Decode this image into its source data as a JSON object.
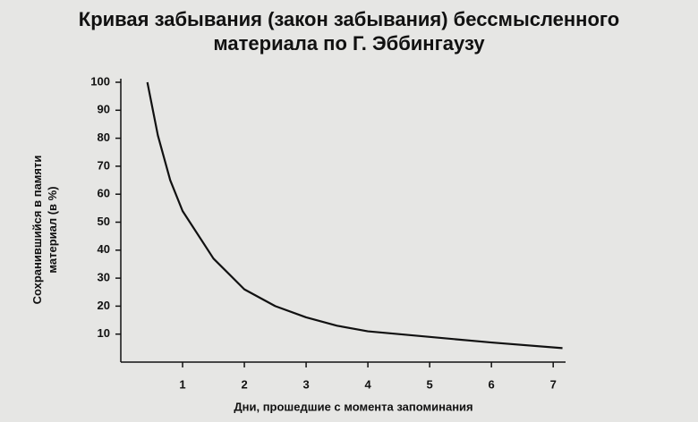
{
  "chart_data": {
    "type": "line",
    "title": "Кривая забывания (закон забывания) бессмысленного материала по Г. Эббингаузу",
    "xlabel": "Дни, прошедшие с момента запоминания",
    "ylabel": "Сохранившийся в памяти материал (в %)",
    "x": [
      0.43,
      0.6,
      0.8,
      1,
      1.5,
      2,
      2.5,
      3,
      3.5,
      4,
      5,
      6,
      7.15
    ],
    "series": [
      {
        "color": "#111111",
        "values": [
          100,
          81,
          65,
          54,
          37,
          26,
          20,
          16,
          13,
          11,
          9,
          7,
          5
        ]
      }
    ],
    "xlim": [
      0,
      7.2
    ],
    "xticks": [
      1,
      2,
      3,
      4,
      5,
      6,
      7
    ],
    "ylim": [
      0,
      100
    ],
    "yticks": [
      10,
      20,
      30,
      40,
      50,
      60,
      70,
      80,
      90,
      100
    ]
  }
}
